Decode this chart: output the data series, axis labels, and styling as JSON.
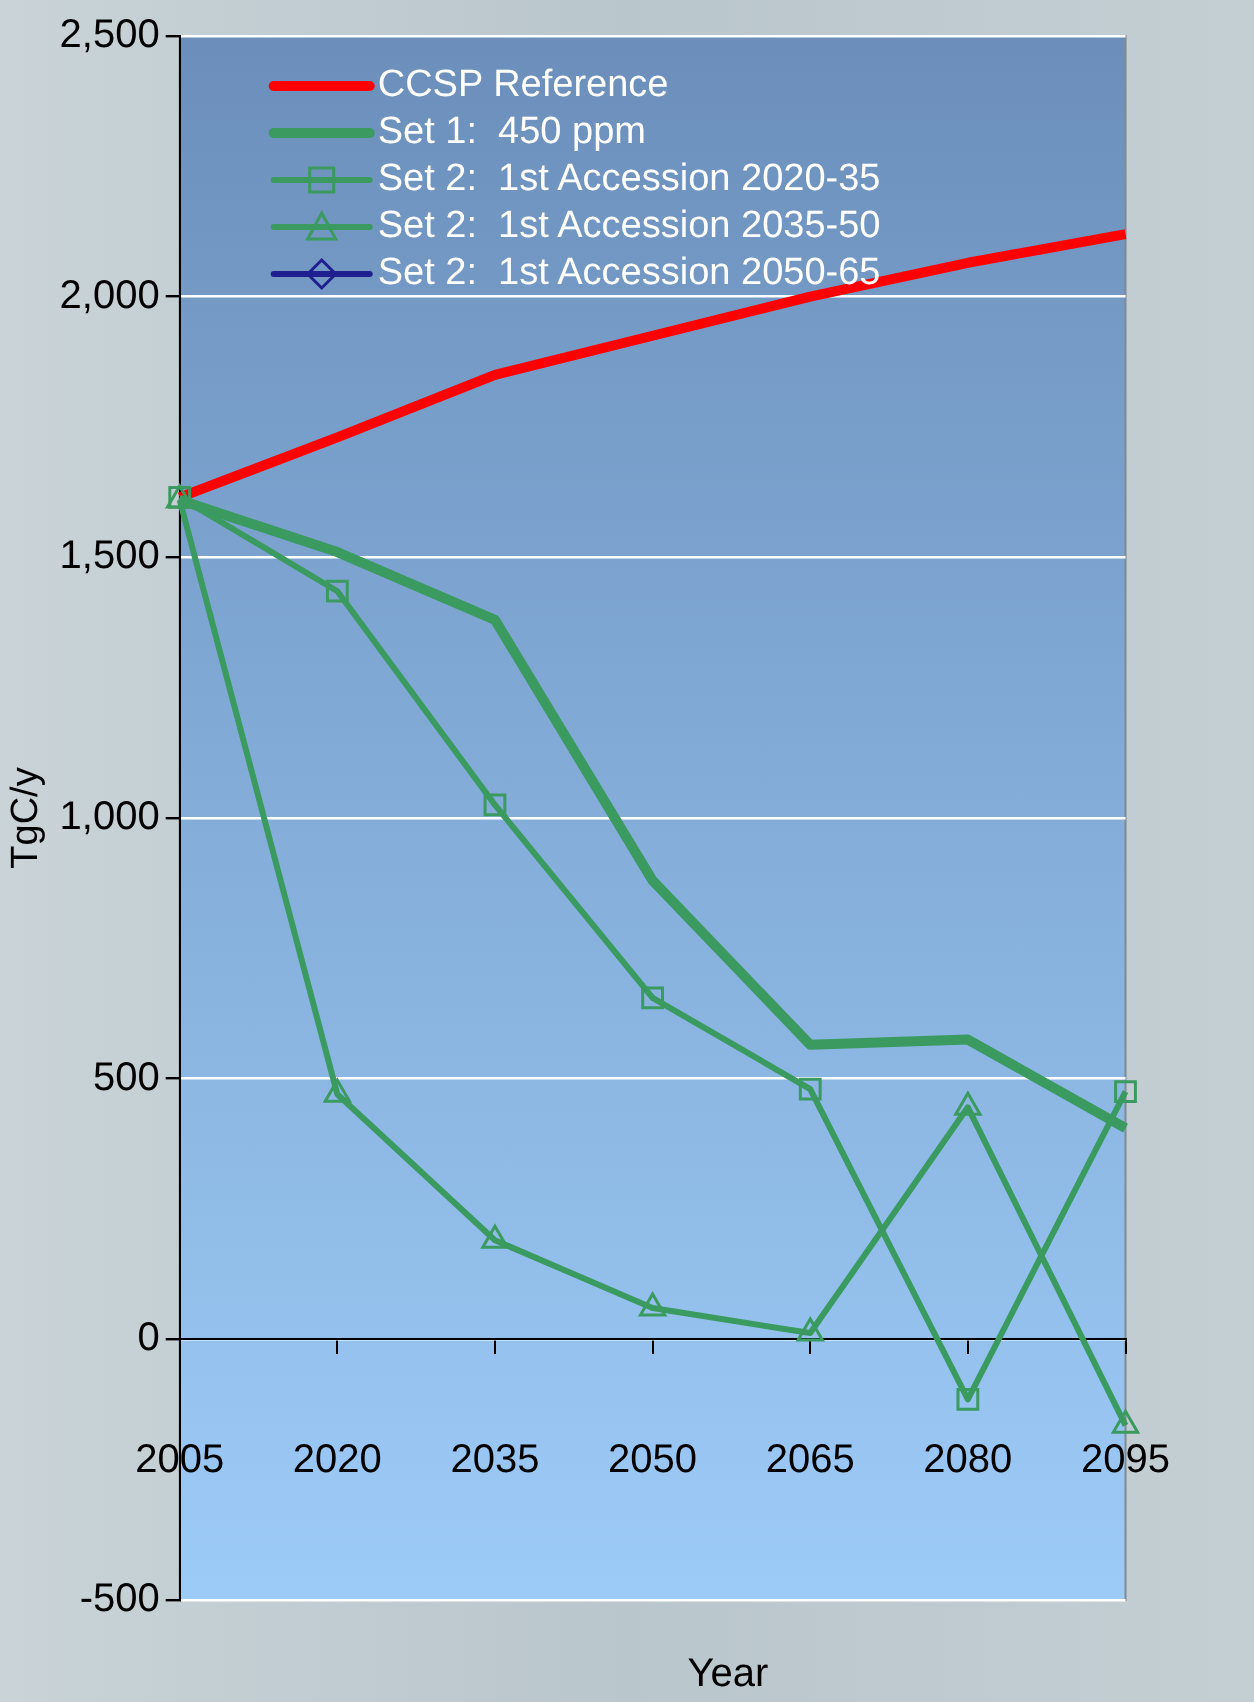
{
  "chart_data": {
    "type": "line",
    "xlabel": "Year",
    "ylabel": "TgC/y",
    "categories": [
      "2005",
      "2020",
      "2035",
      "2050",
      "2065",
      "2080",
      "2095"
    ],
    "series": [
      {
        "name": "CCSP Reference",
        "color": "#ff0000",
        "marker": "none",
        "values": [
          1615,
          1730,
          1850,
          1925,
          2000,
          2065,
          2120
        ]
      },
      {
        "name": "Set 1:  450 ppm",
        "color": "#3a9a5f",
        "marker": "none",
        "values": [
          1610,
          1510,
          1380,
          880,
          565,
          575,
          405
        ]
      },
      {
        "name": "Set 2:  1st Accession 2020-35",
        "color": "#3a9a5f",
        "marker": "square",
        "values": [
          1615,
          1435,
          1025,
          655,
          480,
          -115,
          475
        ]
      },
      {
        "name": "Set 2:  1st Accession 2035-50",
        "color": "#3a9a5f",
        "marker": "triangle",
        "values": [
          1610,
          470,
          190,
          60,
          12,
          445,
          -165
        ]
      },
      {
        "name": "Set 2:  1st Accession 2050-65",
        "color": "#1f1f8f",
        "marker": "diamond",
        "values": [
          null,
          null,
          null,
          null,
          null,
          null,
          null
        ]
      }
    ],
    "ylim": [
      -500,
      2500
    ],
    "yticks": [
      {
        "value": -500,
        "label": "-500"
      },
      {
        "value": 0,
        "label": "0"
      },
      {
        "value": 500,
        "label": "500"
      },
      {
        "value": 1000,
        "label": "1,000"
      },
      {
        "value": 1500,
        "label": "1,500"
      },
      {
        "value": 2000,
        "label": "2,000"
      },
      {
        "value": 2500,
        "label": "2,500"
      }
    ],
    "grid": "y",
    "legend": "top left"
  }
}
